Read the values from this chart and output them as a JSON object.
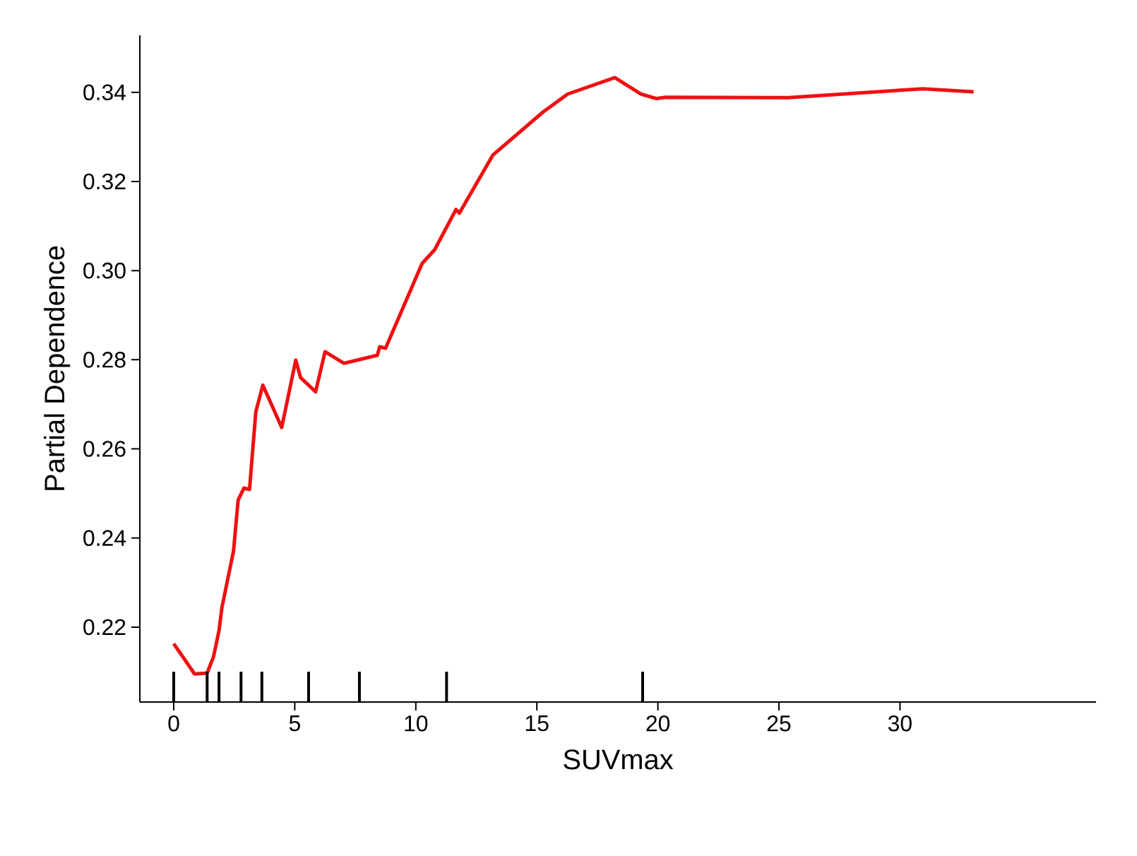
{
  "chart_data": {
    "type": "line",
    "xlabel": "SUVmax",
    "ylabel": "Partial Dependence",
    "xlim": [
      -1.4,
      38.1
    ],
    "ylim": [
      0.2032,
      0.3528
    ],
    "xticks": [
      0,
      5,
      10,
      15,
      20,
      25,
      30
    ],
    "yticks": [
      0.22,
      0.24,
      0.26,
      0.28,
      {
        "value": 0.3,
        "label": "0.30"
      },
      0.32,
      0.34
    ],
    "grid": false,
    "marker": "none",
    "line_style": "solid",
    "series": [
      {
        "color": "#ee1111",
        "x": [
          0,
          0.86,
          1.38,
          1.64,
          1.87,
          1.99,
          2.47,
          2.66,
          2.9,
          3.13,
          3.39,
          3.68,
          4.46,
          5.04,
          5.24,
          5.86,
          6.25,
          7.03,
          8.41,
          8.51,
          8.75,
          10.26,
          10.78,
          11.66,
          11.8,
          13.18,
          15.26,
          16.27,
          18.22,
          19.31,
          19.94,
          20.33,
          25.39,
          30.94,
          33.04
        ],
        "values": [
          0.2163,
          0.2095,
          0.2097,
          0.2133,
          0.2192,
          0.2244,
          0.2371,
          0.2485,
          0.2512,
          0.2509,
          0.2683,
          0.2743,
          0.2648,
          0.2799,
          0.276,
          0.2728,
          0.2818,
          0.2792,
          0.281,
          0.2829,
          0.2826,
          0.3016,
          0.3047,
          0.3137,
          0.3129,
          0.3259,
          0.3356,
          0.3396,
          0.3433,
          0.3396,
          0.3386,
          0.3389,
          0.3388,
          0.3408,
          0.3401
        ]
      },
      {
        "type": "bar",
        "color": "#000000",
        "x": [
          0,
          1.38,
          1.87,
          2.78,
          3.64,
          5.57,
          7.67,
          11.27,
          19.37
        ],
        "values": [
          0.21,
          0.21,
          0.21,
          0.21,
          0.21,
          0.21,
          0.21,
          0.21,
          0.21
        ]
      }
    ]
  }
}
